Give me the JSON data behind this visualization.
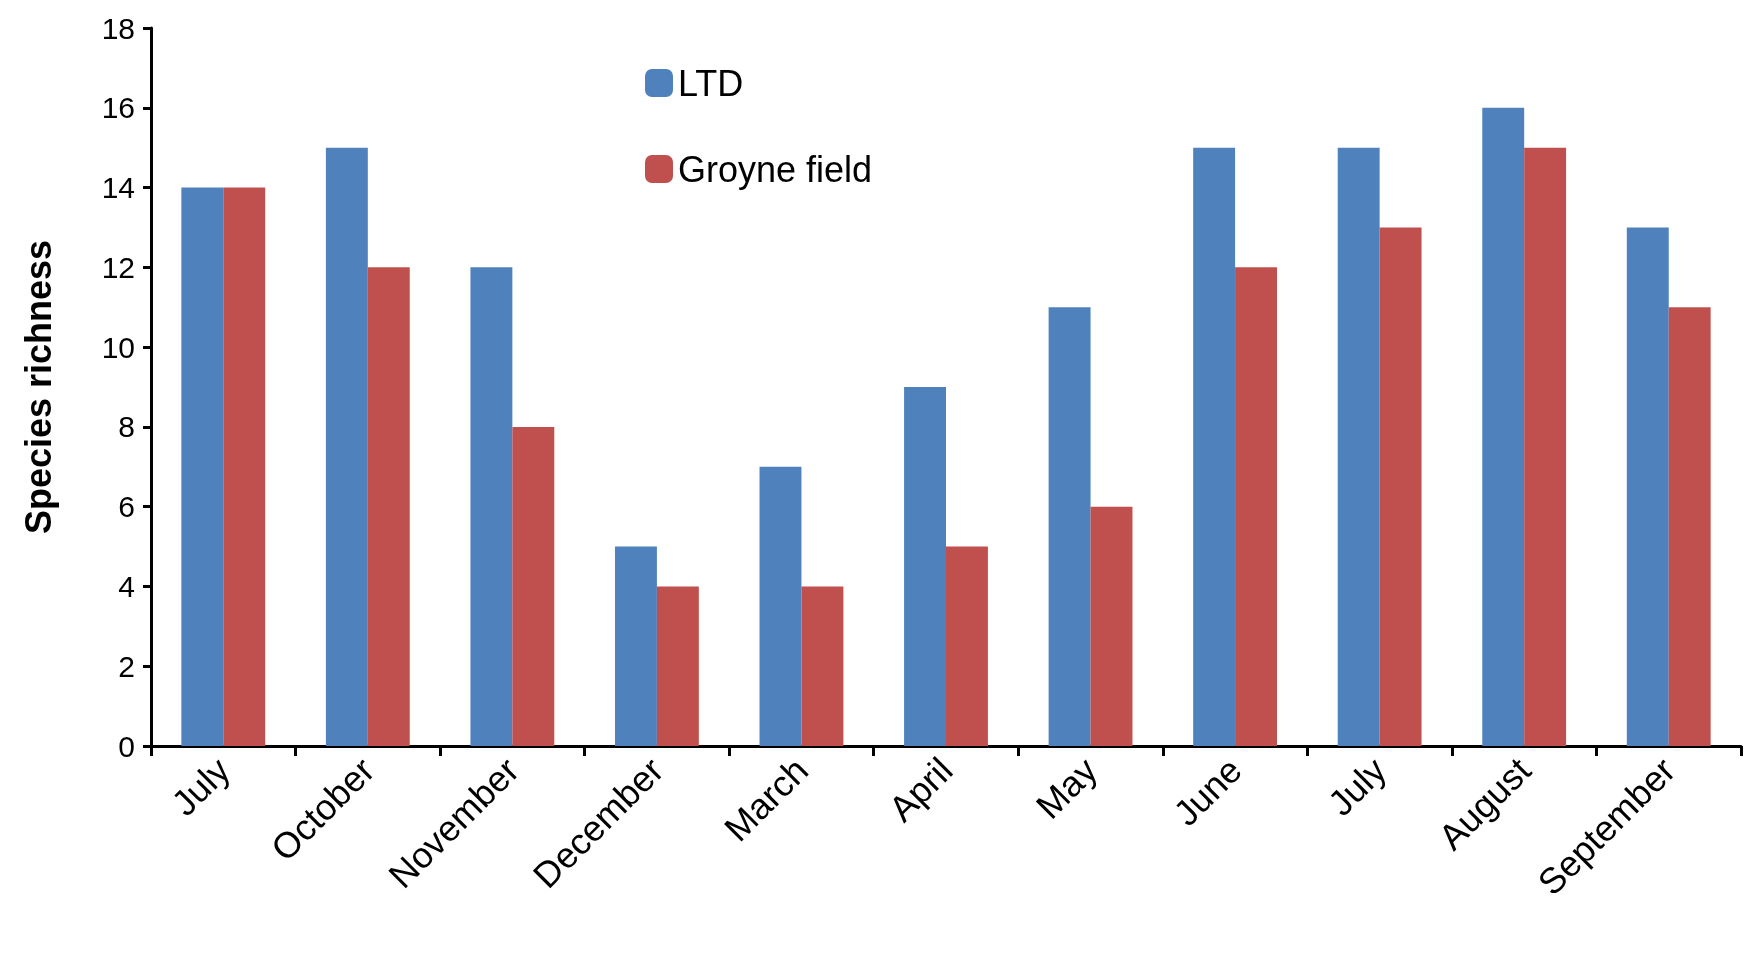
{
  "chart_data": {
    "type": "bar",
    "ylabel": "Species richness",
    "categories": [
      "July",
      "October",
      "November",
      "December",
      "March",
      "April",
      "May",
      "June",
      "July",
      "August",
      "September"
    ],
    "series": [
      {
        "name": "LTD",
        "color": "#4f81bd",
        "values": [
          14,
          15,
          12,
          5,
          7,
          9,
          11,
          15,
          15,
          16,
          13
        ]
      },
      {
        "name": "Groyne field",
        "color": "#c0504d",
        "values": [
          14,
          12,
          8,
          4,
          4,
          5,
          6,
          12,
          13,
          15,
          11
        ]
      }
    ],
    "ylim": [
      0,
      18
    ],
    "yticks": [
      0,
      2,
      4,
      6,
      8,
      10,
      12,
      14,
      16,
      18
    ],
    "grid": false,
    "legend": "top left"
  }
}
